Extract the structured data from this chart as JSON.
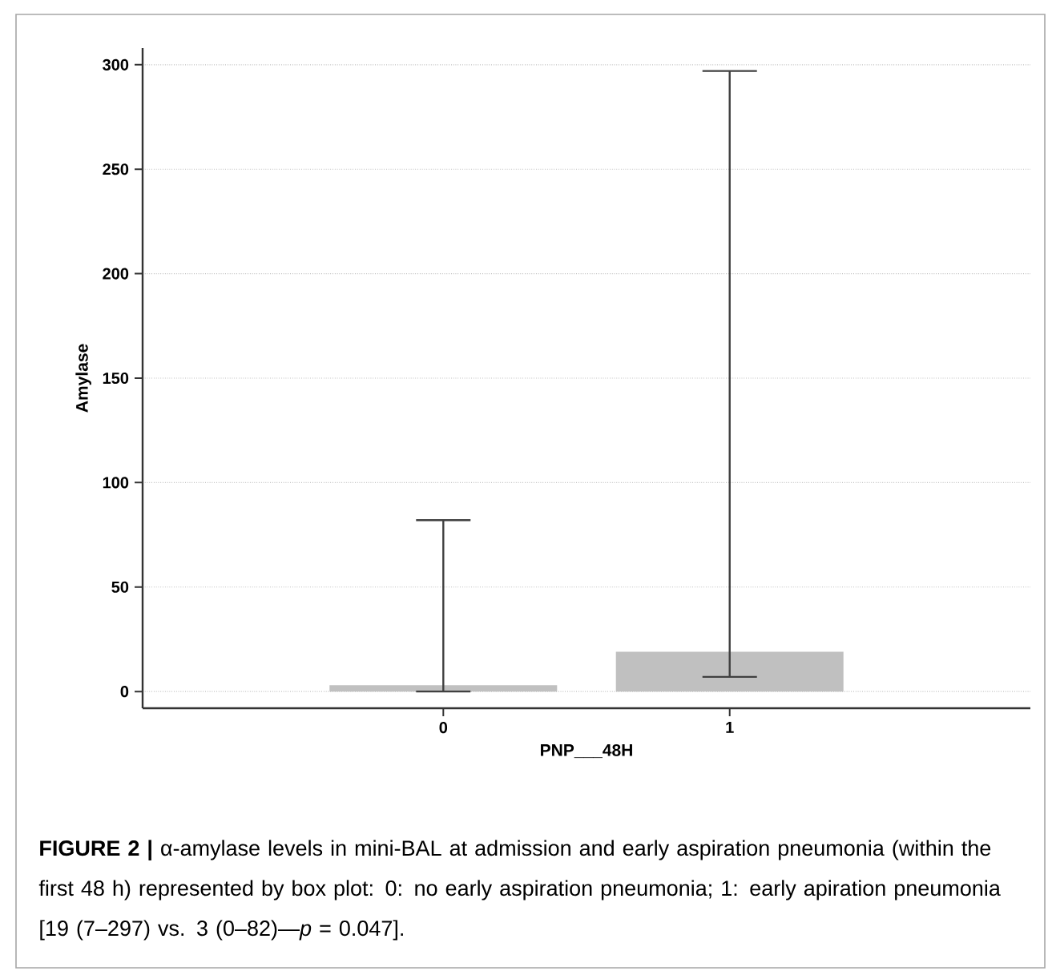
{
  "chart_data": {
    "type": "bar",
    "xlabel": "PNP___48H",
    "ylabel": "Amylase",
    "categories": [
      "0",
      "1"
    ],
    "values": [
      3,
      19
    ],
    "errors": [
      [
        0,
        82
      ],
      [
        7,
        297
      ]
    ],
    "color": "#c0c0c0",
    "ylim": [
      -8,
      308
    ],
    "yticks": [
      0,
      50,
      100,
      150,
      200,
      250,
      300
    ],
    "grid": "y",
    "annotations": [
      "**FIGURE 2 |** α-amylase levels in mini-BAL at admission and early aspiration pneumonia (within the first 48 h) represented by box plot: 0: no early aspiration pneumonia; 1: early apiration pneumonia [19 (7–297) vs. 3 (0–82)—*p* = 0.047]."
    ]
  }
}
